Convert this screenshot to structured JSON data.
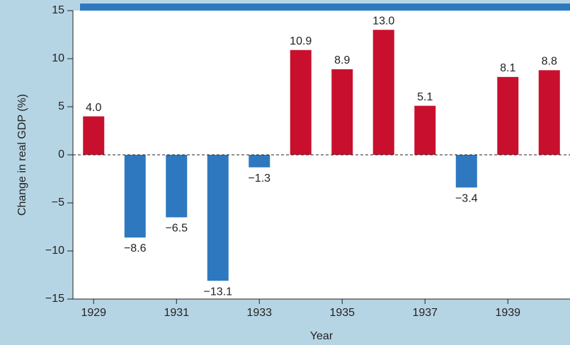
{
  "chart_data": {
    "type": "bar",
    "y_label": "Change in real GDP (%)",
    "x_label": "Year",
    "categories": [
      "1929",
      null,
      "1931",
      null,
      "1933",
      null,
      "1935",
      null,
      "1937",
      null,
      "1939",
      null
    ],
    "values": [
      4.0,
      -8.6,
      -6.5,
      -13.1,
      -1.3,
      10.9,
      8.9,
      13.0,
      5.1,
      -3.4,
      8.1,
      8.8
    ],
    "value_labels": [
      "4.0",
      "−8.6",
      "−6.5",
      "−13.1",
      "−1.3",
      "10.9",
      "8.9",
      "13.0",
      "5.1",
      "−3.4",
      "8.1",
      "8.8"
    ],
    "colors": [
      "#c8102e",
      "#2e78c0",
      "#2e78c0",
      "#2e78c0",
      "#2e78c0",
      "#c8102e",
      "#c8102e",
      "#c8102e",
      "#c8102e",
      "#2e78c0",
      "#c8102e",
      "#c8102e"
    ],
    "ylim": [
      -15,
      15
    ],
    "yticks": [
      {
        "value": -15,
        "label": "−15"
      },
      {
        "value": -10,
        "label": "−10"
      },
      {
        "value": -5,
        "label": "−5"
      },
      0,
      5,
      10,
      15
    ],
    "zero_line": "dashed"
  }
}
